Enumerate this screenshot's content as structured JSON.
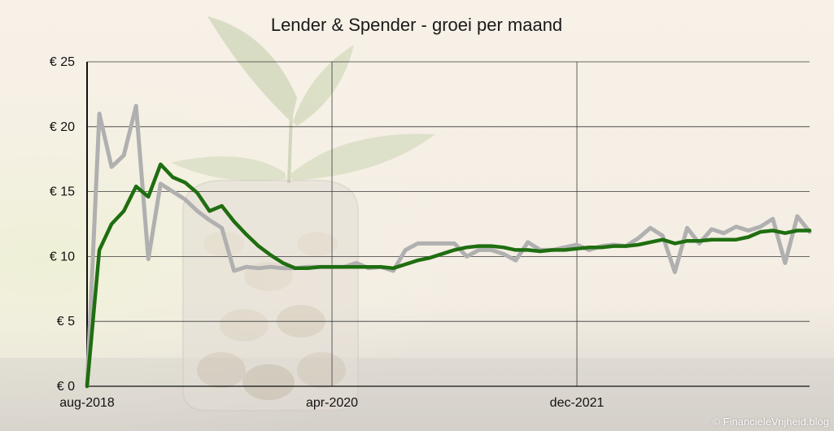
{
  "chart_data": {
    "type": "line",
    "title": "Lender & Spender - groei per maand",
    "ylim": [
      0,
      25
    ],
    "y_ticks": [
      "€ 0",
      "€ 5",
      "€ 10",
      "€ 15",
      "€ 20",
      "€ 25"
    ],
    "y_tick_values": [
      0,
      5,
      10,
      15,
      20,
      25
    ],
    "x_tick_labels": [
      "aug-2018",
      "apr-2020",
      "dec-2021"
    ],
    "x_tick_indices": [
      0,
      20,
      40
    ],
    "grid": true,
    "series": [
      {
        "name": "",
        "color": "#b0b0b0",
        "values": [
          0,
          21,
          16.9,
          17.8,
          21.6,
          9.8,
          15.6,
          15,
          14.4,
          13.5,
          12.8,
          12.2,
          8.9,
          9.2,
          9.1,
          9.2,
          9.1,
          9.1,
          9.2,
          9.2,
          9.2,
          9.2,
          9.5,
          9.1,
          9.2,
          8.9,
          10.5,
          11,
          11,
          11,
          11,
          10,
          10.5,
          10.5,
          10.2,
          9.7,
          11.1,
          10.5,
          10.5,
          10.7,
          10.9,
          10.5,
          10.8,
          10.9,
          10.8,
          11.4,
          12.2,
          11.6,
          8.8,
          12.2,
          11,
          12.1,
          11.8,
          12.3,
          12,
          12.3,
          12.9,
          9.5,
          13.1,
          11.9
        ]
      },
      {
        "name": "",
        "color": "#1f6e10",
        "values": [
          0,
          10.5,
          12.5,
          13.5,
          15.4,
          14.6,
          17.1,
          16.1,
          15.7,
          14.9,
          13.5,
          13.9,
          12.7,
          11.7,
          10.8,
          10.1,
          9.5,
          9.1,
          9.1,
          9.2,
          9.2,
          9.2,
          9.2,
          9.2,
          9.2,
          9.1,
          9.4,
          9.7,
          9.9,
          10.2,
          10.5,
          10.7,
          10.8,
          10.8,
          10.7,
          10.5,
          10.5,
          10.4,
          10.5,
          10.5,
          10.6,
          10.7,
          10.7,
          10.8,
          10.8,
          10.9,
          11.1,
          11.3,
          11,
          11.2,
          11.2,
          11.3,
          11.3,
          11.3,
          11.5,
          11.9,
          12,
          11.8,
          12,
          12
        ]
      }
    ]
  },
  "copyright": "© FinancieleVrijheid.blog"
}
